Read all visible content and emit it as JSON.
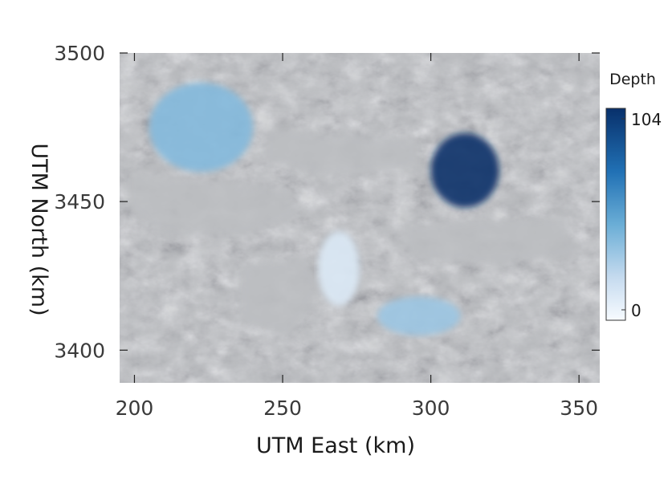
{
  "chart_data": {
    "type": "heatmap",
    "xlabel": "UTM East (km)",
    "ylabel": "UTM North (km)",
    "xlim": [
      195,
      357
    ],
    "ylim": [
      3389,
      3500
    ],
    "x_ticks": [
      200,
      250,
      300,
      350
    ],
    "y_ticks": [
      3400,
      3450,
      3500
    ],
    "x_tick_labels": [
      "200",
      "250",
      "300",
      "350"
    ],
    "y_tick_labels": [
      "3400",
      "3450",
      "3500"
    ],
    "colorbar": {
      "title": "Depth",
      "min": 0,
      "max": 104,
      "tick_labels": [
        "104",
        "0"
      ],
      "colors": [
        "#08306b",
        "#2171b5",
        "#6baed6",
        "#c6dbef",
        "#f7fbff"
      ]
    },
    "background": "grayscale shaded relief",
    "water_bodies": [
      {
        "x": [
          205,
          240
        ],
        "y": [
          3460,
          3490
        ],
        "depth": 45
      },
      {
        "x": [
          300,
          323
        ],
        "y": [
          3448,
          3473
        ],
        "depth": 104
      },
      {
        "x": [
          282,
          310
        ],
        "y": [
          3405,
          3418
        ],
        "depth": 38
      },
      {
        "x": [
          262,
          276
        ],
        "y": [
          3415,
          3440
        ],
        "depth": 15
      }
    ]
  }
}
